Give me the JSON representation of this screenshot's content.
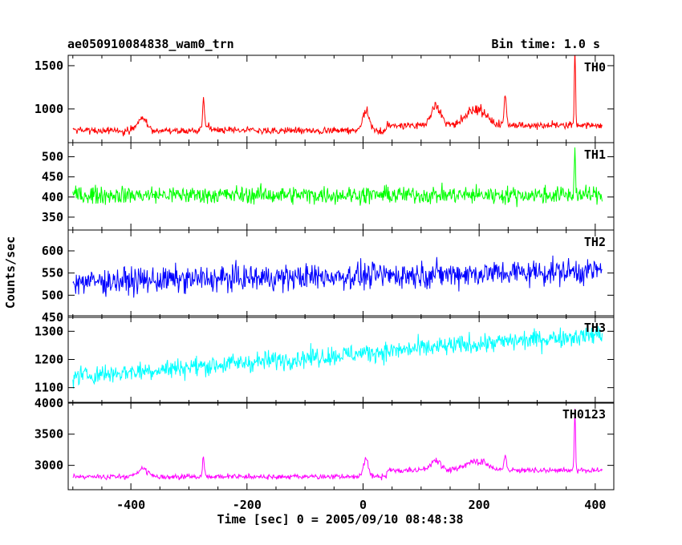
{
  "header": {
    "title": "ae050910084838_wam0_trn",
    "bin_time": "Bin time: 1.0 s"
  },
  "axes": {
    "ylabel": "Counts/sec",
    "xlabel": "Time [sec] 0 = 2005/09/10 08:48:38",
    "x_ticks": [
      "-400",
      "-200",
      "0",
      "200",
      "400"
    ]
  },
  "chart_data": {
    "type": "line",
    "xlim": [
      -508,
      432
    ],
    "x_start": -500,
    "x_end": 412,
    "x_step": 1,
    "grid": false,
    "panels": [
      {
        "name": "TH0",
        "color": "#ff0000",
        "ylim": [
          610,
          1620
        ],
        "y_ticks": [
          1000,
          1500
        ],
        "baseline": 750,
        "noise": 55,
        "features": [
          {
            "x": -380,
            "height": 170,
            "width": 12
          },
          {
            "x": -275,
            "height": 330,
            "width": 2
          },
          {
            "x": -270,
            "height": 80,
            "width": 10
          },
          {
            "x": 5,
            "height": 270,
            "width": 8
          },
          {
            "x": 125,
            "height": 280,
            "width": 12
          },
          {
            "x": 195,
            "height": 230,
            "width": 25
          },
          {
            "x": 245,
            "height": 330,
            "width": 3
          },
          {
            "x": 365,
            "height": 880,
            "width": 1.5
          }
        ],
        "step_at": 40,
        "step_height": 60
      },
      {
        "name": "TH1",
        "color": "#00ff00",
        "ylim": [
          318,
          535
        ],
        "y_ticks": [
          350,
          400,
          450,
          500
        ],
        "baseline": 405,
        "noise": 28,
        "features": [
          {
            "x": 365,
            "height": 120,
            "width": 1.5
          }
        ],
        "step_at": 9999,
        "step_height": 0
      },
      {
        "name": "TH2",
        "color": "#0000ff",
        "ylim": [
          450,
          647
        ],
        "y_ticks": [
          450,
          500,
          550,
          600
        ],
        "baseline": 530,
        "noise": 38,
        "features": [],
        "trend": 25,
        "step_at": 9999,
        "step_height": 0
      },
      {
        "name": "TH3",
        "color": "#00ffff",
        "ylim": [
          1045,
          1355
        ],
        "y_ticks": [
          1100,
          1200,
          1300
        ],
        "baseline": 1140,
        "noise": 45,
        "features": [],
        "trend": 150,
        "step_at": 9999,
        "step_height": 0
      },
      {
        "name": "TH0123",
        "color": "#ff00ff",
        "ylim": [
          2610,
          4010
        ],
        "y_ticks": [
          3000,
          3500,
          4000
        ],
        "baseline": 2820,
        "noise": 55,
        "features": [
          {
            "x": -380,
            "height": 160,
            "width": 12
          },
          {
            "x": -275,
            "height": 320,
            "width": 2
          },
          {
            "x": 5,
            "height": 330,
            "width": 6
          },
          {
            "x": 125,
            "height": 220,
            "width": 12
          },
          {
            "x": 195,
            "height": 200,
            "width": 25
          },
          {
            "x": 245,
            "height": 250,
            "width": 3
          },
          {
            "x": 365,
            "height": 1000,
            "width": 1.5
          }
        ],
        "step_at": 40,
        "step_height": 100
      }
    ]
  }
}
